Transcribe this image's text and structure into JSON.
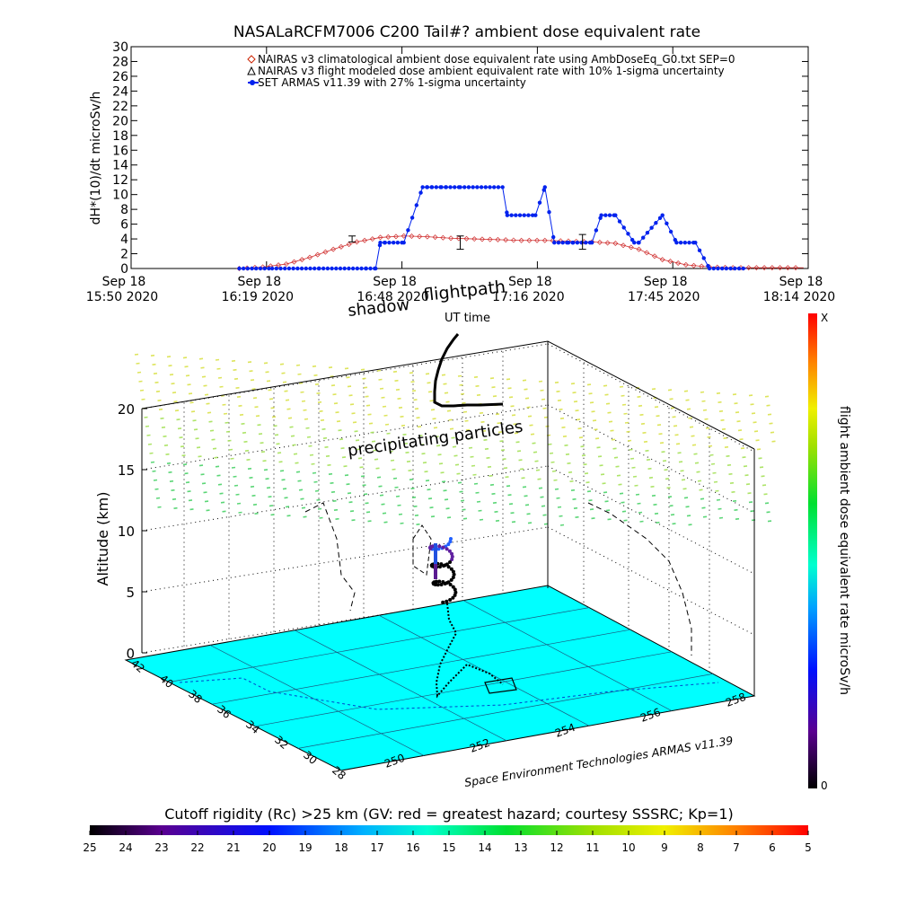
{
  "chart_data": [
    {
      "type": "line",
      "title": "NASALaRCFM7006  C200 Tail#? ambient dose equivalent rate",
      "ylabel": "dH*(10)/dt microSv/h",
      "ylim": [
        0,
        30
      ],
      "y_ticks": [
        "0",
        "2",
        "4",
        "6",
        "8",
        "10",
        "12",
        "14",
        "16",
        "18",
        "20",
        "22",
        "24",
        "26",
        "28",
        "30"
      ],
      "x_ticks": [
        {
          "date": "Sep 18",
          "time": "15:50 2020"
        },
        {
          "date": "Sep 18",
          "time": "16:19 2020"
        },
        {
          "date": "Sep 18",
          "time": "16:48 2020"
        },
        {
          "date": "Sep 18",
          "time": "17:16 2020"
        },
        {
          "date": "Sep 18",
          "time": "17:45 2020"
        },
        {
          "date": "Sep 18",
          "time": "18:14 2020"
        }
      ],
      "x_range_minutes": [
        0,
        144
      ],
      "legend": [
        {
          "label": "NAIRAS v3 climatological ambient dose equivalent rate using AmbDoseEq_G0.txt SEP=0",
          "color": "#cc2200",
          "marker": "diamond"
        },
        {
          "label": "NAIRAS v3 flight modeled dose ambient equivalent rate with 10% 1-sigma uncertainty",
          "color": "#000000",
          "marker": "triangle"
        },
        {
          "label": "SET ARMAS v11.39 with 27% 1-sigma uncertainty",
          "color": "#0022ee",
          "marker": "dot"
        }
      ],
      "series": [
        {
          "name": "NAIRAS v3 climatological ambient dose equivalent rate using AmbDoseEq_G0.txt SEP=0",
          "x": [
            23,
            28,
            33,
            38,
            43,
            48,
            53,
            58,
            63,
            68,
            73,
            78,
            83,
            88,
            93,
            98,
            103,
            108,
            113,
            118,
            123,
            128,
            133,
            138,
            143
          ],
          "values": [
            0,
            0.2,
            0.6,
            1.5,
            2.6,
            3.6,
            4.2,
            4.4,
            4.3,
            4.1,
            4.0,
            3.9,
            3.8,
            3.8,
            3.7,
            3.6,
            3.4,
            2.6,
            1.2,
            0.5,
            0.2,
            0.1,
            0.1,
            0.1,
            0.1
          ],
          "x_offset_minutes": true
        },
        {
          "name": "SET ARMAS v11.39 with 27% 1-sigma uncertainty",
          "x": [
            23,
            30,
            40,
            50,
            52,
            53,
            54,
            58,
            62,
            63,
            64,
            66,
            67,
            70,
            79,
            80,
            86,
            88,
            90,
            93,
            94,
            98,
            100,
            103,
            107,
            108,
            113,
            116,
            120,
            123,
            131
          ],
          "values": [
            0,
            0,
            0,
            0,
            0,
            3.5,
            3.5,
            3.5,
            11,
            11,
            11,
            11,
            11,
            11,
            11,
            7.2,
            7.2,
            11,
            3.5,
            3.5,
            3.5,
            3.5,
            7.2,
            7.2,
            3.5,
            3.5,
            7.2,
            3.5,
            3.5,
            0,
            0
          ]
        }
      ],
      "error_bars": [
        {
          "x": 47,
          "y": 4.0,
          "err": 0.4
        },
        {
          "x": 70,
          "y": 3.5,
          "err": 0.9
        },
        {
          "x": 96,
          "y": 3.6,
          "err": 1.0
        }
      ]
    },
    {
      "type": "scatter",
      "title": "",
      "zlabel": "Altitude (km)",
      "z_ticks": [
        "0",
        "5",
        "10",
        "15",
        "20"
      ],
      "lat_ticks": [
        "42",
        "40",
        "38",
        "36",
        "34",
        "32",
        "30",
        "28"
      ],
      "lon_ticks": [
        "250",
        "252",
        "254",
        "256",
        "258"
      ],
      "annotations": [
        "shadow",
        "UT time",
        "flightpath",
        "precipitating particles",
        "Space Environment Technologies ARMAS v11.39"
      ],
      "colorbar_right": {
        "label": "flight ambient dose equivalent rate microSv/h",
        "min": "0",
        "max": "X"
      },
      "colorbar_bottom": {
        "label": "Cutoff rigidity (Rc) >25 km (GV: red = greatest hazard; courtesy SSSRC; Kp=1)",
        "ticks": [
          "25",
          "24",
          "23",
          "22",
          "21",
          "20",
          "19",
          "18",
          "17",
          "16",
          "15",
          "14",
          "13",
          "12",
          "11",
          "10",
          "9",
          "8",
          "7",
          "6",
          "5"
        ]
      }
    }
  ]
}
